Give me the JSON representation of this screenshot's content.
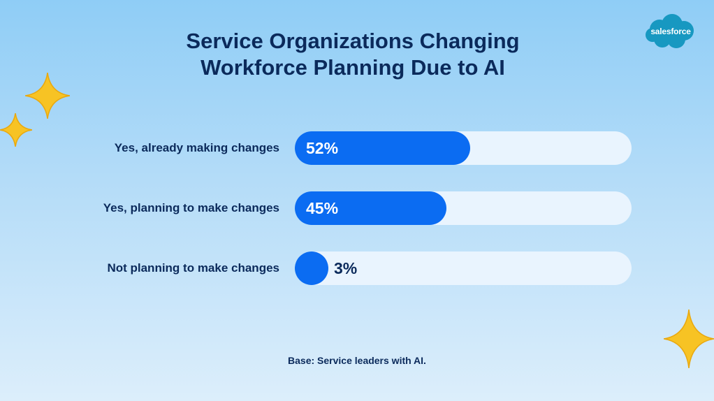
{
  "title_lines": [
    "Service Organizations Changing",
    "Workforce Planning Due to AI"
  ],
  "logo": {
    "text": "salesforce",
    "color": "#1798c1"
  },
  "footnote": "Base: Service leaders with AI.",
  "colors": {
    "bar": "#0b6cf2",
    "track": "#e9f4fe",
    "sparkle": "#f7c324"
  },
  "chart_data": {
    "type": "bar",
    "orientation": "horizontal",
    "categories": [
      "Yes, already making changes",
      "Yes, planning to make changes",
      "Not planning to make changes"
    ],
    "values": [
      52,
      45,
      3
    ],
    "value_labels": [
      "52%",
      "45%",
      "3%"
    ],
    "unit": "%",
    "xlim": [
      0,
      100
    ],
    "grid": false,
    "title": "Service Organizations Changing Workforce Planning Due to AI"
  }
}
